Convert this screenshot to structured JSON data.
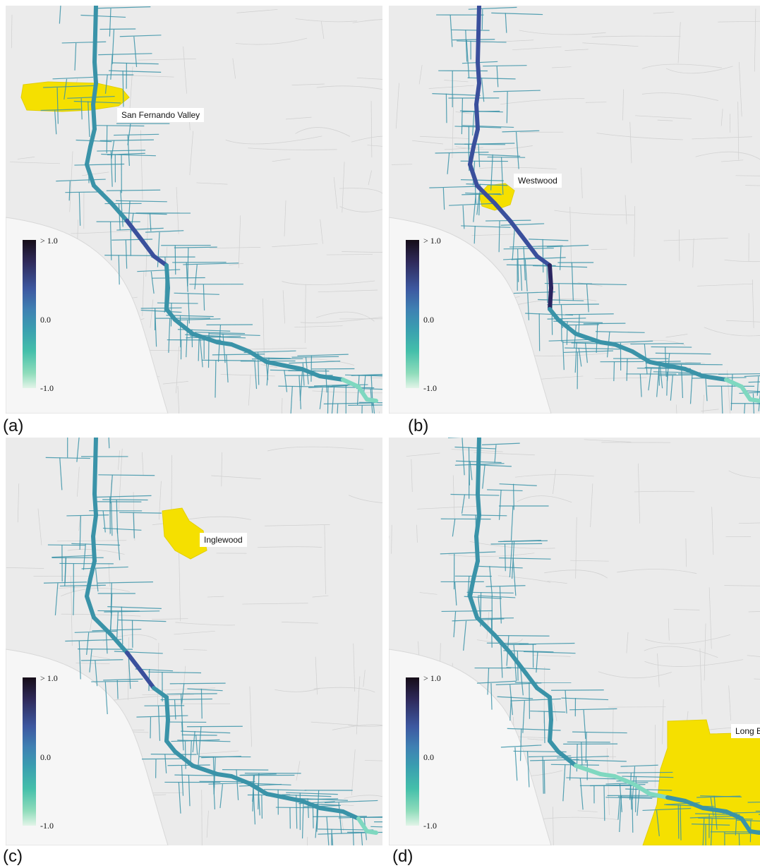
{
  "legend": {
    "max_label": "> 1.0",
    "mid_label": "0.0",
    "min_label": "-1.0"
  },
  "colors": {
    "background": "#ebebeb",
    "road_network": "#cfcfcf",
    "highlight_region": "#f5e000",
    "route_low": "#7fd8c0",
    "route_neutral": "#3a93a8",
    "route_high": "#3a4f9c",
    "route_max": "#2a2560"
  },
  "panels": [
    {
      "letter": "(a)",
      "region_label": "San Fernando Valley"
    },
    {
      "letter": "(b)",
      "region_label": "Westwood"
    },
    {
      "letter": "(c)",
      "region_label": "Inglewood"
    },
    {
      "letter": "(d)",
      "region_label": "Long Beach"
    }
  ]
}
